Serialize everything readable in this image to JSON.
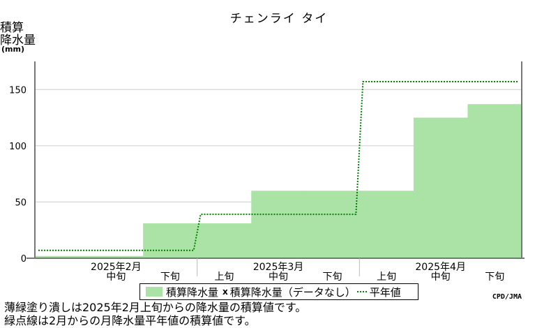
{
  "title": "チェンライ タイ",
  "ylabel_lines": [
    "積算",
    "降水量"
  ],
  "unit": "(mm)",
  "credit": "CPD/JMA",
  "notes": [
    "薄緑塗り潰しは2025年2月上旬からの降水量の積算値です。",
    "緑点線は2月からの月降水量平年値の積算値です。"
  ],
  "legend": {
    "accumulated": "積算降水量",
    "no_data": "積算降水量（データなし）",
    "normal": "平年値"
  },
  "chart_data": {
    "type": "area",
    "title": "チェンライ タイ",
    "ylabel": "積算降水量",
    "unit": "mm",
    "ylim": [
      0,
      175
    ],
    "yticks": [
      0,
      50,
      100,
      150
    ],
    "grid": true,
    "legend_position": "bottom",
    "categories": [
      "2月上旬",
      "2月中旬",
      "2月下旬",
      "3月上旬",
      "3月中旬",
      "3月下旬",
      "4月上旬",
      "4月中旬",
      "4月下旬"
    ],
    "dekad_labels": [
      "中旬",
      "下旬",
      "上旬",
      "中旬",
      "下旬",
      "上旬",
      "中旬",
      "下旬"
    ],
    "month_labels": [
      "2025年2月",
      "2025年3月",
      "2025年4月"
    ],
    "series": [
      {
        "name": "積算降水量",
        "style": "filled-steps",
        "color": "#abe3a6",
        "values": [
          2,
          2,
          31,
          31,
          60,
          60,
          60,
          125,
          137
        ]
      },
      {
        "name": "平年値",
        "style": "dotted-steps",
        "color": "#008000",
        "monthly_cumulative": [
          7,
          39,
          157
        ]
      }
    ]
  }
}
